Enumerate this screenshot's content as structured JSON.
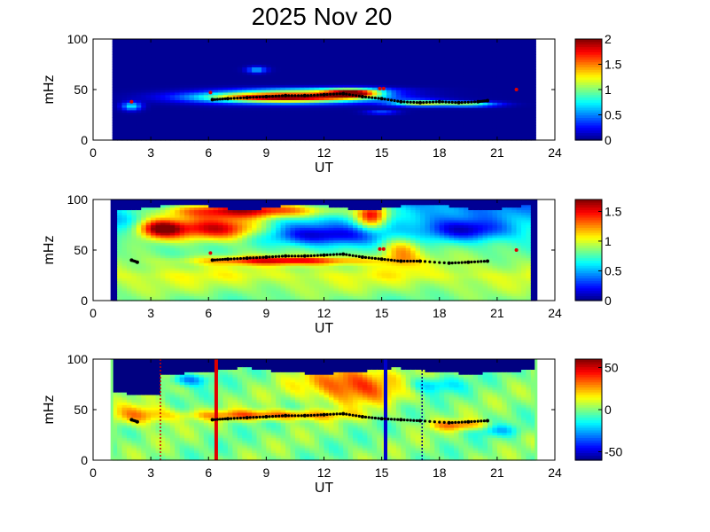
{
  "title": "2025 Nov 20",
  "chart_data": [
    {
      "type": "heatmap",
      "panel": 1,
      "xlabel": "UT",
      "ylabel": "mHz",
      "xlim": [
        0,
        24
      ],
      "ylim": [
        0,
        100
      ],
      "xticks": [
        "0",
        "3",
        "6",
        "9",
        "12",
        "15",
        "18",
        "21",
        "24"
      ],
      "yticks": [
        "0",
        "50",
        "100"
      ],
      "data_range": [
        1,
        23
      ],
      "colorbar": {
        "range": [
          0,
          2
        ],
        "ticks": [
          "0",
          "0.5",
          "1",
          "1.5",
          "2"
        ]
      },
      "markers": {
        "black": [
          [
            6.2,
            40
          ],
          [
            7,
            41
          ],
          [
            8,
            42
          ],
          [
            9,
            43
          ],
          [
            10,
            44
          ],
          [
            11,
            44
          ],
          [
            12,
            45
          ],
          [
            13,
            46
          ],
          [
            14,
            43
          ],
          [
            15,
            41
          ],
          [
            16,
            38
          ],
          [
            17,
            37
          ],
          [
            18,
            38
          ],
          [
            19,
            37
          ],
          [
            20,
            38
          ],
          [
            20.5,
            39
          ]
        ],
        "red": [
          [
            6.1,
            47
          ],
          [
            14.9,
            51
          ],
          [
            15.1,
            51
          ],
          [
            22,
            50
          ],
          [
            2,
            38
          ]
        ]
      }
    },
    {
      "type": "heatmap",
      "panel": 2,
      "xlabel": "UT",
      "ylabel": "mHz",
      "xlim": [
        0,
        24
      ],
      "ylim": [
        0,
        100
      ],
      "xticks": [
        "0",
        "3",
        "6",
        "9",
        "12",
        "15",
        "18",
        "21",
        "24"
      ],
      "yticks": [
        "0",
        "50",
        "100"
      ],
      "data_range": [
        1,
        23
      ],
      "colorbar": {
        "range": [
          0,
          1.7
        ],
        "ticks": [
          "0",
          "0.5",
          "1",
          "1.5"
        ]
      },
      "markers": {
        "black": [
          [
            2,
            40
          ],
          [
            2.3,
            38
          ],
          [
            6.2,
            40
          ],
          [
            7,
            41
          ],
          [
            8,
            42
          ],
          [
            9,
            43
          ],
          [
            10,
            44
          ],
          [
            11,
            44
          ],
          [
            12,
            45
          ],
          [
            13,
            46
          ],
          [
            14,
            43
          ],
          [
            15,
            41
          ],
          [
            16,
            39
          ],
          [
            17,
            39
          ],
          [
            18.5,
            37
          ],
          [
            19.5,
            38
          ],
          [
            20.5,
            39
          ]
        ],
        "red": [
          [
            6.1,
            47
          ],
          [
            14.9,
            51
          ],
          [
            15.1,
            51
          ],
          [
            22,
            50
          ]
        ]
      }
    },
    {
      "type": "heatmap",
      "panel": 3,
      "xlabel": "UT",
      "ylabel": "mHz",
      "xlim": [
        0,
        24
      ],
      "ylim": [
        0,
        100
      ],
      "xticks": [
        "0",
        "3",
        "6",
        "9",
        "12",
        "15",
        "18",
        "21",
        "24"
      ],
      "yticks": [
        "0",
        "50",
        "100"
      ],
      "data_range": [
        1,
        23
      ],
      "colorbar": {
        "range": [
          -60,
          60
        ],
        "ticks": [
          "-50",
          "0",
          "50"
        ]
      },
      "markers": {
        "black": [
          [
            2,
            40
          ],
          [
            2.3,
            38
          ],
          [
            6.2,
            40
          ],
          [
            7,
            41
          ],
          [
            8,
            42
          ],
          [
            9,
            43
          ],
          [
            10,
            44
          ],
          [
            11,
            44
          ],
          [
            12,
            45
          ],
          [
            13,
            46
          ],
          [
            14,
            43
          ],
          [
            15,
            41
          ],
          [
            16,
            40
          ],
          [
            17,
            39
          ],
          [
            18.5,
            37
          ],
          [
            19.5,
            38
          ],
          [
            20.5,
            39
          ]
        ]
      },
      "vlines": [
        {
          "x": 3.5,
          "color": "#cc0000",
          "style": "dotted"
        },
        {
          "x": 6.4,
          "color": "#e00000",
          "style": "solid"
        },
        {
          "x": 15.2,
          "color": "#0000cc",
          "style": "solid"
        },
        {
          "x": 17.1,
          "color": "#000080",
          "style": "dotted"
        }
      ]
    }
  ]
}
